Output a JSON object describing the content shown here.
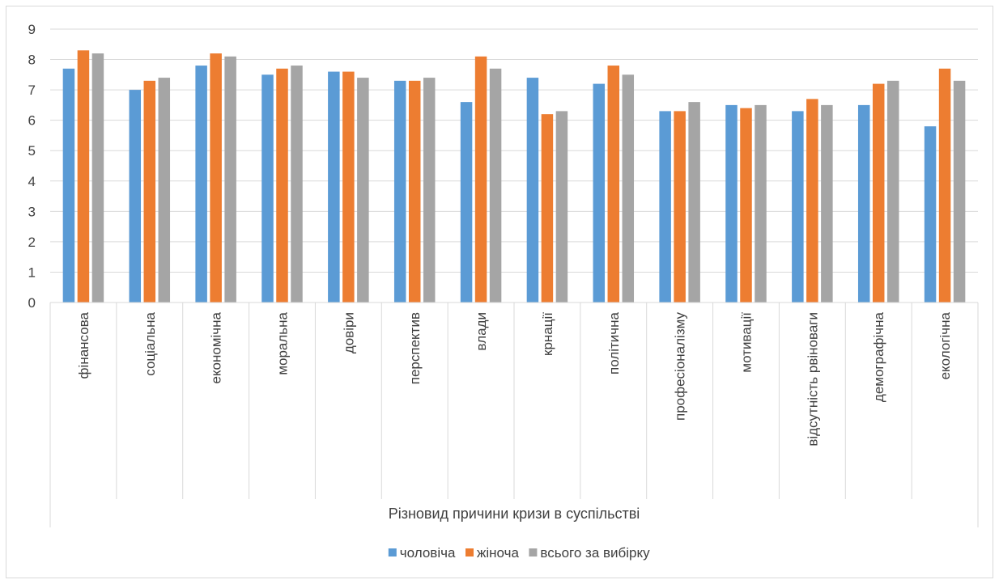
{
  "chart_data": {
    "type": "bar",
    "title": "",
    "xlabel": "Різновид причини кризи в суспільстві",
    "ylabel": "",
    "ylim": [
      0,
      9
    ],
    "yticks": [
      "0",
      "1",
      "2",
      "3",
      "4",
      "5",
      "6",
      "7",
      "8",
      "9"
    ],
    "grid": "horizontal",
    "legend_position": "bottom",
    "categories": [
      "фінансова",
      "соціальна",
      "економічна",
      "моральна",
      "довіри",
      "перспектив",
      "влади",
      "крнації",
      "політична",
      "професіоналізму",
      "мотивації",
      "відсутність рвіноваги",
      "демографічна",
      "екологічна"
    ],
    "series": [
      {
        "name": "чоловіча",
        "color": "#5B9BD5",
        "values": [
          7.7,
          7.0,
          7.8,
          7.5,
          7.6,
          7.3,
          6.6,
          7.4,
          7.2,
          6.3,
          6.5,
          6.3,
          6.5,
          5.8
        ]
      },
      {
        "name": "жіноча",
        "color": "#ED7D31",
        "values": [
          8.3,
          7.3,
          8.2,
          7.7,
          7.6,
          7.3,
          8.1,
          6.2,
          7.8,
          6.3,
          6.4,
          6.7,
          7.2,
          7.7
        ]
      },
      {
        "name": "всього за вибірку",
        "color": "#A5A5A5",
        "values": [
          8.2,
          7.4,
          8.1,
          7.8,
          7.4,
          7.4,
          7.7,
          6.3,
          7.5,
          6.6,
          6.5,
          6.5,
          7.3,
          7.3
        ]
      }
    ]
  }
}
